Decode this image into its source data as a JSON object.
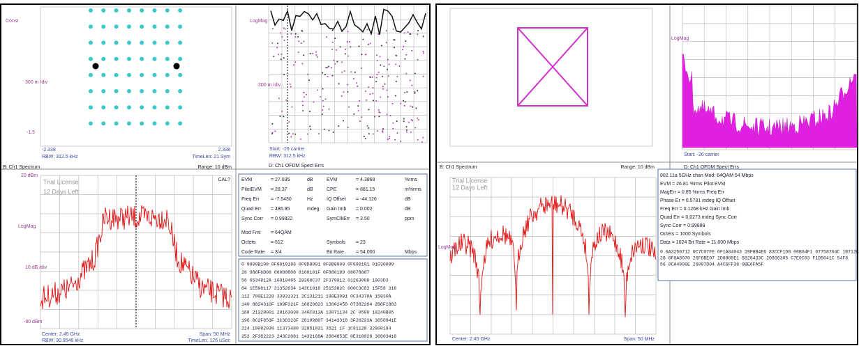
{
  "left": {
    "constellation": {
      "y_label": "Const",
      "scale": "300 m /div",
      "y_bottom": "-1.5",
      "x_left": "-2.338",
      "x_right": "2.338",
      "rbw": "RBW: 312.5 kHz",
      "time_len": "TimeLen: 21 Sym"
    },
    "spectrum": {
      "title": "B: Ch1 Spectrum",
      "range": "Range: 10 dBm",
      "top": "20 dBm",
      "license": "Trial License",
      "days": "12 Days Left",
      "cal": "CAL?",
      "scale": "LogMag",
      "div": "10 dB /div",
      "bottom": "-80 dBm",
      "center": "Center: 2.45 GHz",
      "rbw": "RBW: 30.9548 kHz",
      "span": "Span: 50 MHz",
      "time_len": "TimeLen: 126 uSec"
    },
    "errors": {
      "title": "D: Ch1 OFDM Spect Errs",
      "scale": "LogMag",
      "div": "300 m /div",
      "start": "Start: -26 carrier",
      "rbw": "RBW: 312.5 kHz"
    },
    "metrics": [
      [
        "EVM",
        "= 27.035",
        "dB",
        "EVM",
        "= 4.3868",
        "%rms"
      ],
      [
        "PilotEVM",
        "= 28.37",
        "dB",
        "CPE",
        "= 881.15",
        "m%rms"
      ],
      [
        "Freq Err",
        "= -7.5430",
        "Hz",
        "IQ Offset",
        "= -44.126",
        "dB"
      ],
      [
        "Quad Err",
        "= 486.85",
        "mdeg",
        "Gain Imb",
        "= 0.002",
        "dB"
      ],
      [
        "Sync Corr",
        "= 0.99822",
        "",
        "SymClkErr",
        "= 3.50",
        "ppm"
      ],
      [
        "Mod Fmt",
        "= 64QAM",
        "",
        "",
        "",
        ""
      ],
      [
        "Octets",
        "= 512",
        "",
        "Symbols",
        "= 23",
        ""
      ],
      [
        "Code Rate",
        "= 3/4",
        "",
        "Bit Rate",
        "= 54.000",
        "Mbps"
      ]
    ],
    "hex": [
      "0  9808B108 0F8010186 0F8D8801 8F0B8008 0F880181 01030088",
      "28 988F6D08 08080808 8108101F 0F880189 08078887",
      "56 6534812A 10910485 28308C37 2F379012 01263088 1903D3",
      "84 1E598117 31352634 143C1818 2515382C 000C3C83 15F58 318",
      "112 780E1228 33831321 2C131211 180E3001 0C34378A 15830A",
      "140 882431DF 189F321F 18829823 13002458 07382284 2B8F1803",
      "168 21328001 28163038 340C813A 13071134 2C 0588 18240B05",
      "196 8C2F853F 3C3D323F 2810980T 34143318 3F26223A 3050841E",
      "224 19082038 11373480 32851831 3521 1F 1C81128 32800184",
      "252 2F382223 243C2081 1432168A 2804853E 0E310028 30803418"
    ]
  },
  "right": {
    "spectrum": {
      "title": "B: Ch1 Spectrum",
      "range": "Range: 10 dBm",
      "license": "Trial License",
      "days": "12 Days Left",
      "scale": "LogMag",
      "center": "Center: 2.45 GHz",
      "span": "Span: 50 MHz"
    },
    "errors": {
      "title": "D: Ch1 OFDM Spect Errs",
      "scale": "LogMag",
      "start": "Start: -26 carrier"
    },
    "summary": [
      "802.11a 5GHz chan  Mod: 64QAM  54 Mbps",
      "EVM     = 26.81    %rms     Pilot EVM",
      "MagErr  = 0.85    %rms     Freq Err",
      "Phase Er = 0.5781   mdeg     IQ Offset",
      "Freq Err = 0.1268   kHz      Gain Imb",
      "Quad Err = 0.0273   mdeg     Sync Corr",
      "Sync Corr = 0.99888",
      "Octets  = 1000    Symbols",
      "Data    = 1024    Bit Rate  = 11.000  Mbps"
    ],
    "hex": [
      "0  0A3250712 0C7C07FE 0F1A04043 29F8B4E8 83CCF1D0 08B04F1 07758704C 1B7128A",
      "28 0F0A8070 26F6BE07 2D8888E1 5828433C 20806305 C7E0C03 F1D5041C 54F8",
      "56 0CA4800E 26007D04 A4C6FF38 0BE6FA5F"
    ]
  }
}
